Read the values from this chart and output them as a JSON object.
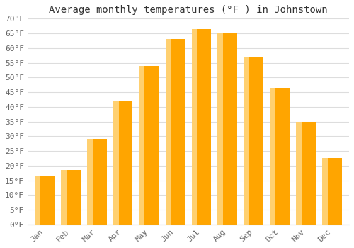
{
  "title": "Average monthly temperatures (°F ) in Johnstown",
  "months": [
    "Jan",
    "Feb",
    "Mar",
    "Apr",
    "May",
    "Jun",
    "Jul",
    "Aug",
    "Sep",
    "Oct",
    "Nov",
    "Dec"
  ],
  "values": [
    16.5,
    18.5,
    29,
    42,
    54,
    63,
    66.5,
    65,
    57,
    46.5,
    35,
    22.5
  ],
  "bar_color_dark": "#FFA500",
  "bar_color_light": "#FFD070",
  "ylim": [
    0,
    70
  ],
  "yticks": [
    0,
    5,
    10,
    15,
    20,
    25,
    30,
    35,
    40,
    45,
    50,
    55,
    60,
    65,
    70
  ],
  "ytick_labels": [
    "0°F",
    "5°F",
    "10°F",
    "15°F",
    "20°F",
    "25°F",
    "30°F",
    "35°F",
    "40°F",
    "45°F",
    "50°F",
    "55°F",
    "60°F",
    "65°F",
    "70°F"
  ],
  "background_color": "#ffffff",
  "grid_color": "#dddddd",
  "title_fontsize": 10,
  "tick_fontsize": 8,
  "tick_font_family": "monospace",
  "tick_color": "#666666",
  "bar_width": 0.75
}
